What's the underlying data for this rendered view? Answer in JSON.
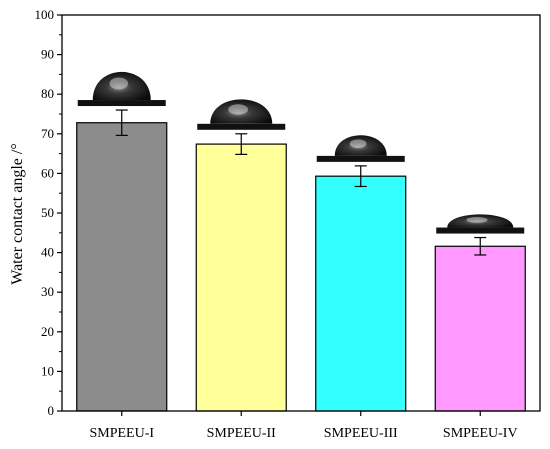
{
  "chart_data": {
    "type": "bar",
    "title": "",
    "xlabel": "",
    "ylabel": "Water contact angle /°",
    "ylim": [
      0,
      100
    ],
    "yticks": [
      0,
      10,
      20,
      30,
      40,
      50,
      60,
      70,
      80,
      90,
      100
    ],
    "categories": [
      "SMPEEU-I",
      "SMPEEU-II",
      "SMPEEU-III",
      "SMPEEU-IV"
    ],
    "values": [
      72.8,
      67.4,
      59.3,
      41.6
    ],
    "errors": [
      3.2,
      2.6,
      2.6,
      2.2
    ],
    "colors": [
      "#8c8c8c",
      "#ffff99",
      "#33ffff",
      "#ff99ff"
    ],
    "grid": false,
    "legend": "none",
    "droplet_images": [
      "water-droplet-icon",
      "water-droplet-icon",
      "water-droplet-icon",
      "water-droplet-icon"
    ]
  }
}
